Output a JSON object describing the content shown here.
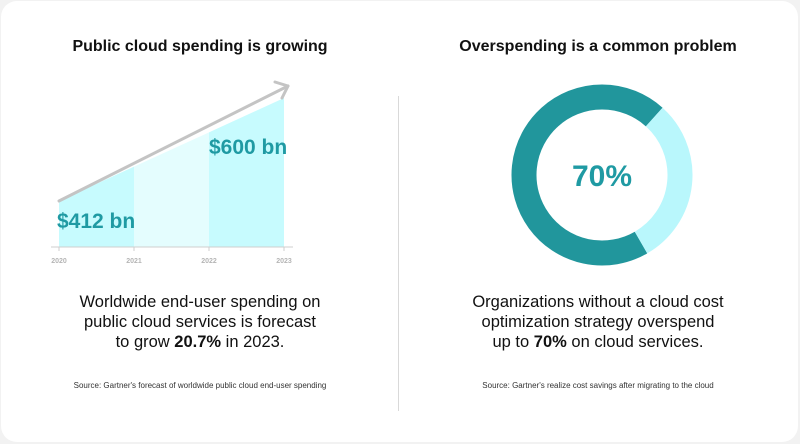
{
  "left_panel": {
    "title": "Public cloud spending is growing",
    "description": {
      "line1": "Worldwide end-user spending on",
      "line2": "public cloud services is forecast",
      "line3_prefix": "to grow ",
      "line3_bold": "20.7%",
      "line3_suffix": " in 2023."
    },
    "source": "Source: Gartner's forecast of worldwide public cloud end-user spending"
  },
  "right_panel": {
    "title": "Overspending is a common problem",
    "description": {
      "line1": "Organizations without a cloud cost",
      "line2": "optimization strategy overspend",
      "line3_prefix": "up to ",
      "line3_bold": "70%",
      "line3_suffix": " on cloud services."
    },
    "source": "Source: Gartner's realize cost savings after migrating to the cloud"
  },
  "colors": {
    "teal_text": "#1f9aa3",
    "donut_dark": "#21969c",
    "donut_light": "#b9f7fc",
    "area_mid": "#c7fbfe",
    "area_light": "#e4fdfe",
    "arrow": "#c4c4c4",
    "axis": "#cfcfcf",
    "tick": "#b5b5b5"
  },
  "chart_data": [
    {
      "type": "area",
      "x": [
        "2020",
        "2021",
        "2022",
        "2023"
      ],
      "labels": [
        {
          "text": "$412 bn",
          "x": "2020",
          "value": 412
        },
        {
          "text": "$600 bn",
          "x": "2023",
          "value": 600
        }
      ]
    },
    {
      "type": "pie",
      "values": [
        70,
        30
      ],
      "center_label": "70%"
    }
  ]
}
